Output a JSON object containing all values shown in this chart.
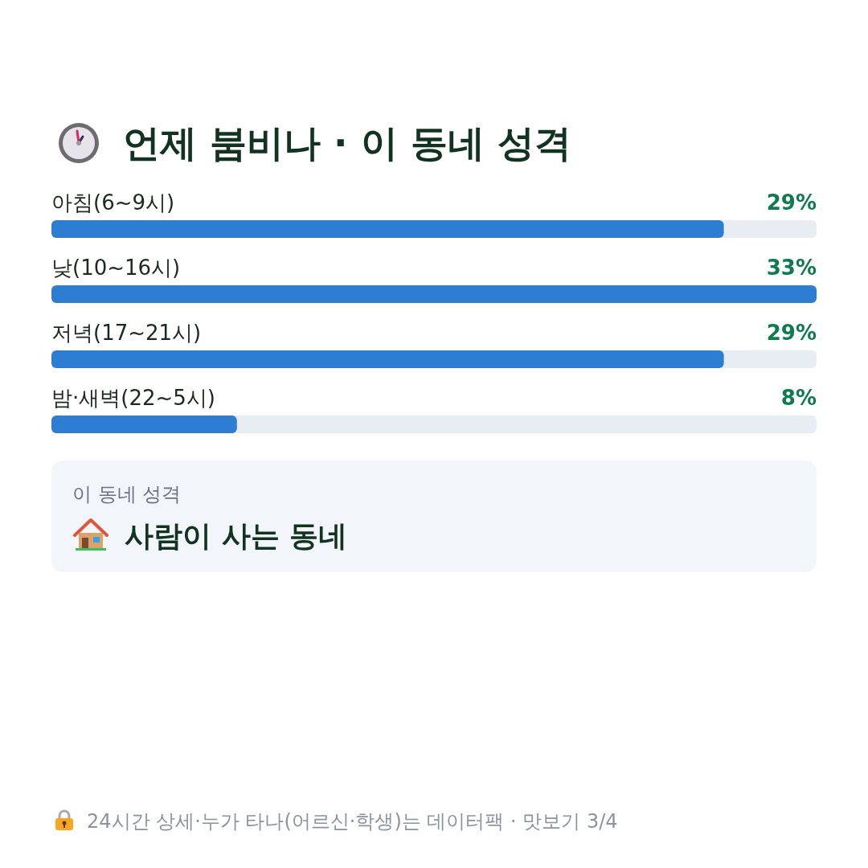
{
  "chart_data": {
    "type": "bar",
    "orientation": "horizontal",
    "title": "언제 붐비나 · 이 동네 성격",
    "categories": [
      "아침(6~9시)",
      "낮(10~16시)",
      "저녁(17~21시)",
      "밤·새벽(22~5시)"
    ],
    "values": [
      29,
      33,
      29,
      8
    ],
    "color": "#2d7dd2",
    "value_labels": [
      "29%",
      "33%",
      "29%",
      "8%"
    ],
    "annotations": [
      "이 동네 성격",
      "사람이 사는 동네",
      "24시간 상세·누가 타나(어르신·학생)는 데이터팩 · 맛보기 3/4"
    ]
  }
}
